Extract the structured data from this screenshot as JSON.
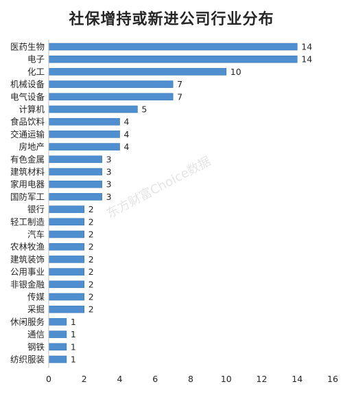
{
  "title": "社保增持或新进公司行业分布",
  "watermark": "东方财富Choice数据",
  "chart_data": {
    "type": "bar",
    "orientation": "horizontal",
    "title": "社保增持或新进公司行业分布",
    "categories": [
      "医药生物",
      "电子",
      "化工",
      "机械设备",
      "电气设备",
      "计算机",
      "食品饮料",
      "交通运输",
      "房地产",
      "有色金属",
      "建筑材料",
      "家用电器",
      "国防军工",
      "银行",
      "轻工制造",
      "汽车",
      "农林牧渔",
      "建筑装饰",
      "公用事业",
      "非银金融",
      "传媒",
      "采掘",
      "休闲服务",
      "通信",
      "钢铁",
      "纺织服装"
    ],
    "values": [
      14,
      14,
      10,
      7,
      7,
      5,
      4,
      4,
      4,
      3,
      3,
      3,
      3,
      2,
      2,
      2,
      2,
      2,
      2,
      2,
      2,
      2,
      1,
      1,
      1,
      1
    ],
    "xlim": [
      0,
      16
    ],
    "xticks": [
      0,
      2,
      4,
      6,
      8,
      10,
      12,
      14,
      16
    ],
    "bar_color": "#4f8fd0",
    "grid": false,
    "data_labels": true
  }
}
